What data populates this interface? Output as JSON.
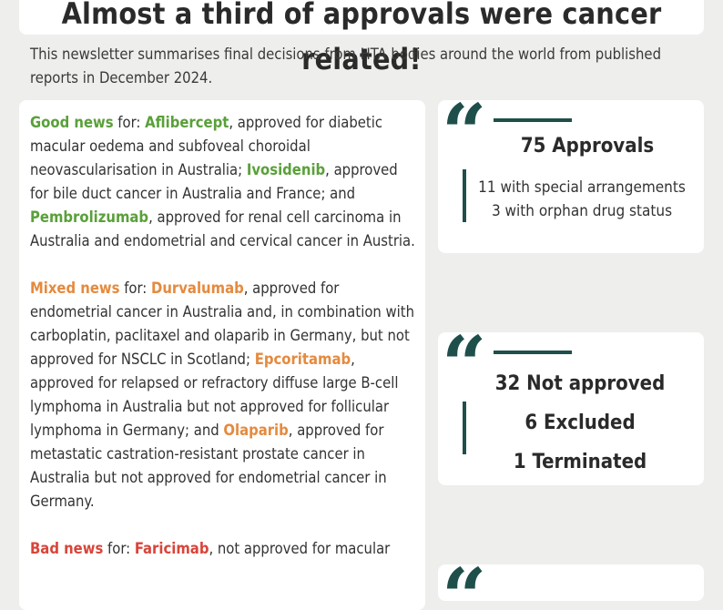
{
  "headline": "Almost a third of approvals were cancer related!",
  "intro": "This newsletter summarises final decisions from HTA bodies around the world from published reports in December 2024.",
  "good": {
    "label": "Good news",
    "for": " for: ",
    "drug1": "Aflibercept",
    "text1": ", approved for diabetic macular oedema and subfoveal choroidal neovascularisation in Australia; ",
    "drug2": "Ivosidenib",
    "text2": ", approved for bile duct cancer in Australia and France; and ",
    "drug3": "Pembrolizumab",
    "text3": ", approved for renal cell carcinoma in Australia and endometrial and cervical cancer in Austria."
  },
  "mixed": {
    "label": "Mixed news",
    "for": " for: ",
    "drug1": "Durvalumab",
    "text1": ", approved for endometrial cancer in Australia and, in combination with carboplatin, paclitaxel and olaparib in Germany, but not approved for NSCLC in Scotland; ",
    "drug2": "Epcoritamab",
    "text2": ", approved for relapsed or refractory diffuse large B-cell lymphoma in Australia but not approved for follicular lymphoma in Germany; and ",
    "drug3": "Olaparib",
    "text3": ", approved for metastatic castration-resistant prostate cancer in Australia but not approved for endometrial cancer in Germany."
  },
  "bad": {
    "label": "Bad news",
    "for": " for:  ",
    "drug1": "Faricimab",
    "text1": ", not approved for macular"
  },
  "stats1": {
    "title": "75 Approvals",
    "line1": "11 with special arrangements",
    "line2": "3 with orphan drug status"
  },
  "stats2": {
    "line1": "32 Not approved",
    "line2": "6 Excluded",
    "line3": "1 Terminated"
  },
  "quote_glyph": "“",
  "colors": {
    "good": "#5aa03a",
    "mixed": "#e58a3e",
    "bad": "#d8453a",
    "accent": "#1f4f4a"
  }
}
